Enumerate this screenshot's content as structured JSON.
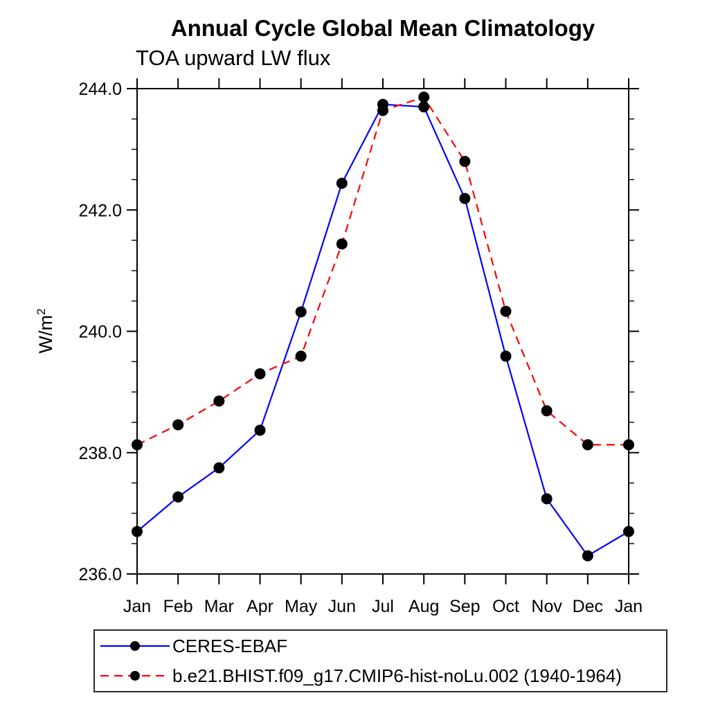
{
  "chart_data": {
    "type": "line",
    "title": "Annual Cycle Global Mean Climatology",
    "subtitle": "TOA upward LW flux",
    "ylabel_base": "W/m",
    "ylabel_sup": "2",
    "categories": [
      "Jan",
      "Feb",
      "Mar",
      "Apr",
      "May",
      "Jun",
      "Jul",
      "Aug",
      "Sep",
      "Oct",
      "Nov",
      "Dec",
      "Jan"
    ],
    "ylim": [
      236.0,
      244.0
    ],
    "ytick_major_interval": 2.0,
    "ytick_minor_interval": 0.5,
    "grid": false,
    "legend_position": "bottom-left-box",
    "axis_color": "#000000",
    "marker_color": "#000000",
    "series": [
      {
        "name": "CERES-EBAF",
        "color": "#0000fe",
        "line_style": "solid",
        "marker": "filled-circle",
        "values": [
          236.7,
          237.27,
          237.75,
          238.37,
          240.32,
          242.44,
          243.74,
          243.7,
          242.19,
          239.59,
          237.24,
          236.3,
          236.7
        ]
      },
      {
        "name": "b.e21.BHIST.f09_g17.CMIP6-hist-noLu.002 (1940-1964)",
        "color": "#fe0000",
        "line_style": "dashed",
        "marker": "filled-circle",
        "values": [
          238.13,
          238.46,
          238.85,
          239.3,
          239.59,
          241.44,
          243.64,
          243.86,
          242.8,
          240.33,
          238.69,
          238.13,
          238.13
        ]
      }
    ]
  }
}
